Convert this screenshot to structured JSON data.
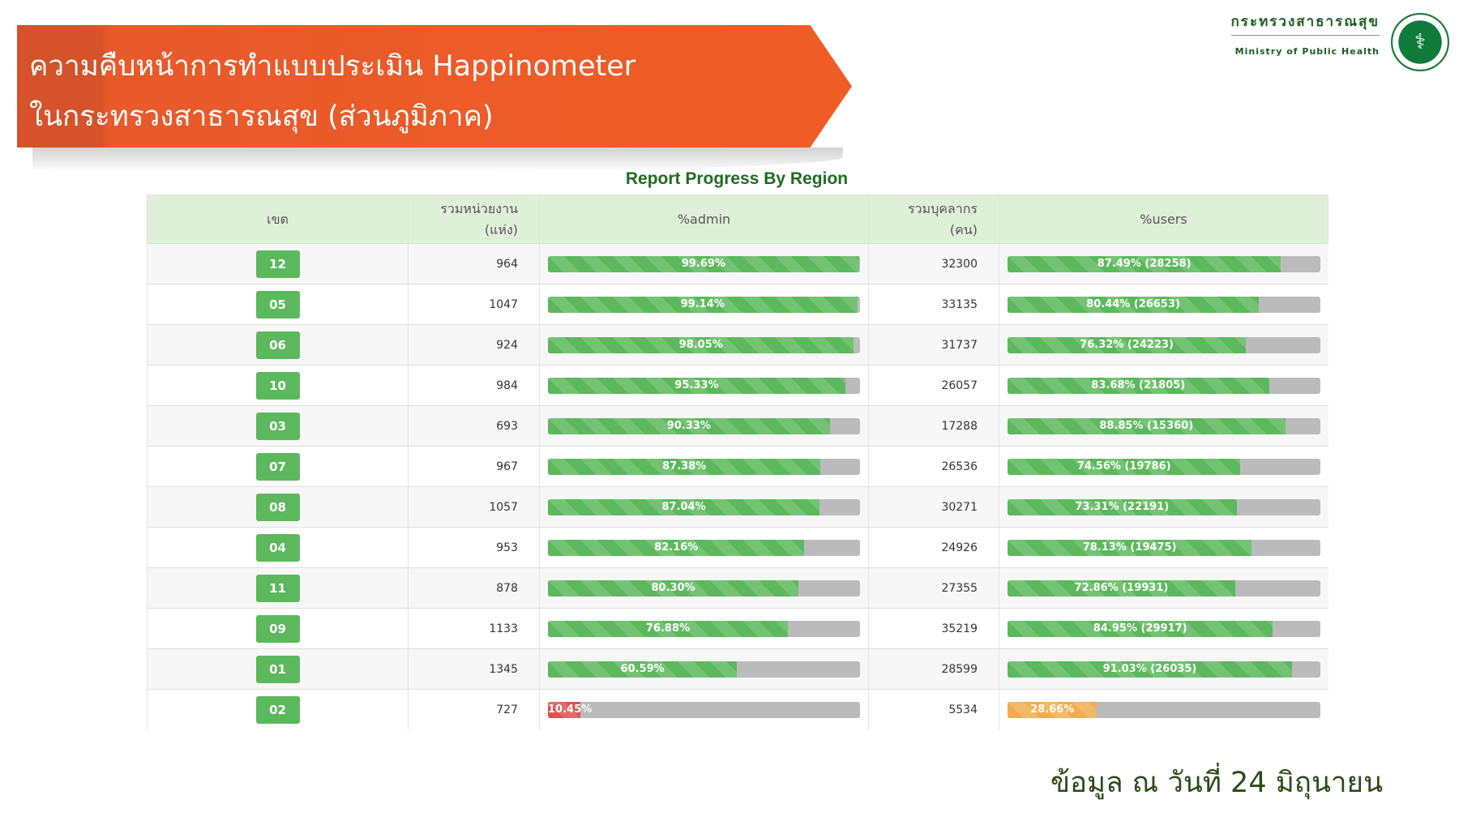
{
  "banner": {
    "line1": "ความคืบหน้าการทำแบบประเมิน Happinometer",
    "line2": "ในกระทรวงสาธารณสุข (ส่วนภูมิภาค)"
  },
  "logo": {
    "thai": "กระทรวงสาธารณสุข",
    "english": "Ministry of Public Health"
  },
  "report_title": "Report Progress By Region",
  "columns": [
    "เขต",
    "รวมหน่วยงาน\n(แห่ง)",
    "%admin",
    "รวมบุคลากร\n(คน)",
    "%users"
  ],
  "colors": {
    "green": "#5cb85c",
    "red": "#d9534f",
    "orange": "#f0ad4e",
    "track": "#bbbbbb",
    "header_bg": "#dff0d8"
  },
  "rows": [
    {
      "region": "12",
      "units": "964",
      "admin_pct": 99.69,
      "admin_label": "99.69%",
      "staff": "32300",
      "users_pct": 87.49,
      "users_label": "87.49% (28258)"
    },
    {
      "region": "05",
      "units": "1047",
      "admin_pct": 99.14,
      "admin_label": "99.14%",
      "staff": "33135",
      "users_pct": 80.44,
      "users_label": "80.44% (26653)"
    },
    {
      "region": "06",
      "units": "924",
      "admin_pct": 98.05,
      "admin_label": "98.05%",
      "staff": "31737",
      "users_pct": 76.32,
      "users_label": "76.32% (24223)"
    },
    {
      "region": "10",
      "units": "984",
      "admin_pct": 95.33,
      "admin_label": "95.33%",
      "staff": "26057",
      "users_pct": 83.68,
      "users_label": "83.68% (21805)"
    },
    {
      "region": "03",
      "units": "693",
      "admin_pct": 90.33,
      "admin_label": "90.33%",
      "staff": "17288",
      "users_pct": 88.85,
      "users_label": "88.85% (15360)"
    },
    {
      "region": "07",
      "units": "967",
      "admin_pct": 87.38,
      "admin_label": "87.38%",
      "staff": "26536",
      "users_pct": 74.56,
      "users_label": "74.56% (19786)"
    },
    {
      "region": "08",
      "units": "1057",
      "admin_pct": 87.04,
      "admin_label": "87.04%",
      "staff": "30271",
      "users_pct": 73.31,
      "users_label": "73.31% (22191)"
    },
    {
      "region": "04",
      "units": "953",
      "admin_pct": 82.16,
      "admin_label": "82.16%",
      "staff": "24926",
      "users_pct": 78.13,
      "users_label": "78.13% (19475)"
    },
    {
      "region": "11",
      "units": "878",
      "admin_pct": 80.3,
      "admin_label": "80.30%",
      "staff": "27355",
      "users_pct": 72.86,
      "users_label": "72.86% (19931)"
    },
    {
      "region": "09",
      "units": "1133",
      "admin_pct": 76.88,
      "admin_label": "76.88%",
      "staff": "35219",
      "users_pct": 84.95,
      "users_label": "84.95% (29917)"
    },
    {
      "region": "01",
      "units": "1345",
      "admin_pct": 60.59,
      "admin_label": "60.59%",
      "staff": "28599",
      "users_pct": 91.03,
      "users_label": "91.03% (26035)"
    },
    {
      "region": "02",
      "units": "727",
      "admin_pct": 10.45,
      "admin_label": "10.45%",
      "staff": "5534",
      "users_pct": 28.66,
      "users_label": "28.66%"
    }
  ],
  "footer": "ข้อมูล ณ วันที่ 24 มิถุนายน"
}
